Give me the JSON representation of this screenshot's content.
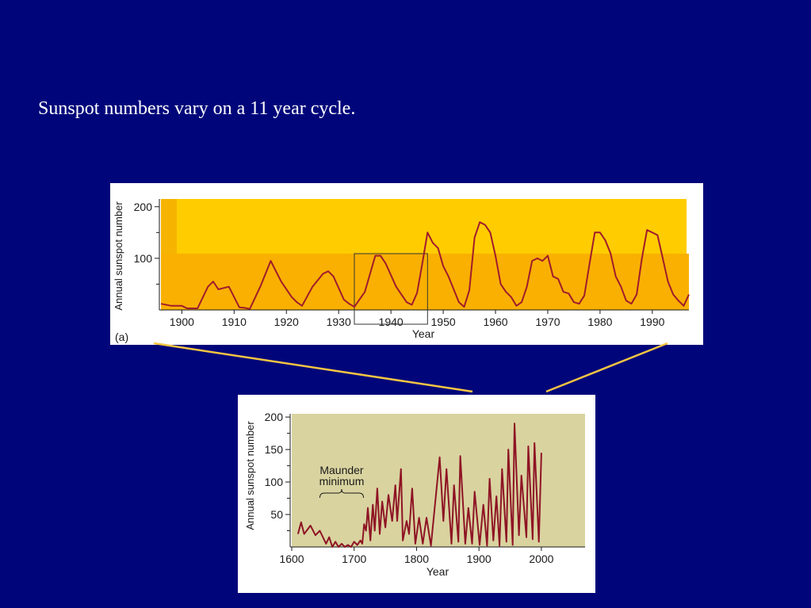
{
  "slide": {
    "title": "Sunspot numbers vary on a 11 year cycle."
  },
  "colors": {
    "background": "#00067a",
    "chart_a_band": "#ffcc00",
    "chart_a_plot": "#f9b000",
    "chart_b_plot": "#d9d3a0",
    "line": "#a01c2c",
    "connector": "#f5c542"
  },
  "chart_data": [
    {
      "type": "line",
      "panel_label": "(a)",
      "xlabel": "Year",
      "ylabel": "Annual sunspot number",
      "xlim": [
        1896,
        1997
      ],
      "ylim": [
        0,
        215
      ],
      "x_ticks": [
        1900,
        1910,
        1920,
        1930,
        1940,
        1950,
        1960,
        1970,
        1980,
        1990
      ],
      "y_ticks": [
        100,
        200
      ],
      "grid": false,
      "highlight_box": [
        1933,
        1947
      ],
      "series": [
        {
          "x": [
            1896,
            1898,
            1900,
            1901,
            1903,
            1905,
            1906,
            1907,
            1909,
            1911,
            1912,
            1913,
            1915,
            1917,
            1918,
            1919,
            1921,
            1922,
            1923,
            1925,
            1927,
            1928,
            1929,
            1931,
            1932,
            1933,
            1935,
            1937,
            1938,
            1939,
            1941,
            1943,
            1944,
            1945,
            1946,
            1947,
            1948,
            1949,
            1950,
            1951,
            1953,
            1954,
            1955,
            1956,
            1957,
            1958,
            1959,
            1960,
            1961,
            1962,
            1963,
            1964,
            1965,
            1966,
            1967,
            1968,
            1969,
            1970,
            1971,
            1972,
            1973,
            1974,
            1975,
            1976,
            1977,
            1978,
            1979,
            1980,
            1981,
            1982,
            1983,
            1984,
            1985,
            1986,
            1987,
            1988,
            1989,
            1990,
            1991,
            1992,
            1993,
            1994,
            1995,
            1996,
            1997
          ],
          "y": [
            12,
            8,
            8,
            3,
            3,
            45,
            55,
            40,
            45,
            5,
            4,
            2,
            45,
            95,
            75,
            55,
            25,
            15,
            8,
            45,
            70,
            75,
            65,
            20,
            12,
            6,
            35,
            105,
            105,
            90,
            45,
            15,
            10,
            33,
            90,
            150,
            130,
            120,
            85,
            65,
            15,
            6,
            38,
            140,
            170,
            165,
            150,
            105,
            50,
            35,
            25,
            8,
            15,
            45,
            95,
            100,
            95,
            105,
            65,
            60,
            35,
            32,
            15,
            12,
            28,
            90,
            150,
            150,
            135,
            110,
            65,
            45,
            18,
            12,
            30,
            100,
            155,
            150,
            145,
            100,
            55,
            30,
            18,
            8,
            30
          ]
        }
      ]
    },
    {
      "type": "line",
      "xlabel": "Year",
      "ylabel": "Annual sunspot number",
      "xlim": [
        1600,
        2070
      ],
      "ylim": [
        0,
        205
      ],
      "x_ticks": [
        1600,
        1700,
        1800,
        1900,
        2000
      ],
      "y_ticks": [
        50,
        100,
        150,
        200
      ],
      "grid": false,
      "annotation": {
        "line1": "Maunder",
        "line2": "minimum",
        "x_range": [
          1645,
          1715
        ]
      },
      "series": [
        {
          "x": [
            1610,
            1615,
            1620,
            1630,
            1638,
            1645,
            1655,
            1660,
            1665,
            1670,
            1675,
            1680,
            1685,
            1690,
            1695,
            1700,
            1705,
            1710,
            1713,
            1716,
            1719,
            1722,
            1726,
            1730,
            1733,
            1737,
            1741,
            1745,
            1750,
            1755,
            1761,
            1766,
            1769,
            1775,
            1778,
            1784,
            1788,
            1793,
            1798,
            1804,
            1810,
            1816,
            1823,
            1830,
            1837,
            1843,
            1848,
            1856,
            1860,
            1867,
            1870,
            1878,
            1883,
            1889,
            1893,
            1901,
            1907,
            1913,
            1917,
            1923,
            1928,
            1933,
            1937,
            1944,
            1947,
            1954,
            1957,
            1964,
            1968,
            1976,
            1979,
            1986,
            1989,
            1996,
            2000
          ],
          "y": [
            20,
            38,
            20,
            33,
            18,
            25,
            5,
            15,
            0,
            8,
            0,
            5,
            0,
            3,
            0,
            8,
            3,
            10,
            5,
            35,
            25,
            60,
            10,
            65,
            25,
            90,
            20,
            70,
            30,
            80,
            40,
            95,
            40,
            120,
            10,
            40,
            20,
            90,
            5,
            45,
            5,
            45,
            2,
            70,
            138,
            40,
            120,
            5,
            95,
            8,
            140,
            5,
            60,
            5,
            85,
            3,
            65,
            2,
            105,
            10,
            78,
            2,
            120,
            8,
            150,
            3,
            190,
            18,
            110,
            15,
            155,
            12,
            160,
            8,
            145
          ]
        }
      ]
    }
  ]
}
